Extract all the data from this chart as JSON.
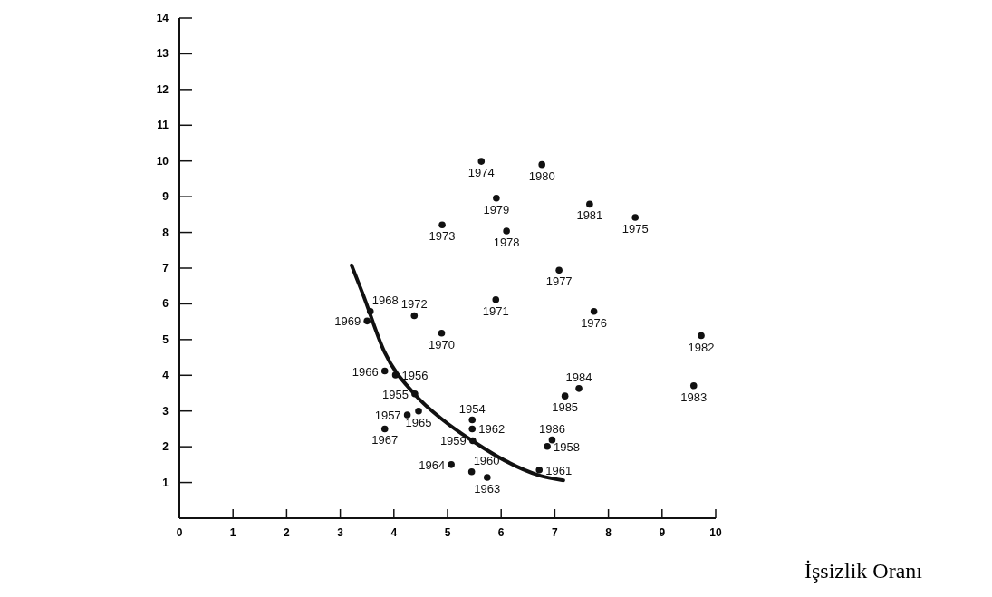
{
  "chart_data": {
    "type": "scatter",
    "xlabel": "İşsizlik Oranı",
    "xlim": [
      0,
      10
    ],
    "ylim": [
      0,
      14
    ],
    "xticks": [
      0,
      1,
      2,
      3,
      4,
      5,
      6,
      7,
      8,
      9,
      10
    ],
    "yticks": [
      1,
      2,
      3,
      4,
      5,
      6,
      7,
      8,
      9,
      10,
      11,
      12,
      13,
      14
    ],
    "grid": false,
    "marker": "circle",
    "series": [
      {
        "type": "scatter",
        "color": "#111111",
        "x": [
          5.63,
          6.76,
          5.91,
          4.9,
          6.1,
          7.65,
          8.5,
          7.08,
          5.9,
          7.73,
          9.73,
          9.59,
          7.45,
          7.19,
          6.95,
          6.86,
          6.71,
          3.56,
          3.5,
          4.38,
          4.89,
          3.83,
          4.03,
          4.39,
          4.25,
          4.46,
          3.83,
          5.46,
          5.46,
          5.47,
          5.07,
          5.45,
          5.74
        ],
        "values": [
          9.99,
          9.9,
          8.96,
          8.21,
          8.04,
          8.79,
          8.42,
          6.94,
          6.12,
          5.79,
          5.11,
          3.71,
          3.63,
          3.42,
          2.19,
          2.01,
          1.35,
          5.79,
          5.52,
          5.67,
          5.18,
          4.12,
          4.01,
          3.48,
          2.89,
          3.0,
          2.5,
          2.75,
          2.5,
          2.17,
          1.5,
          1.3,
          1.14
        ]
      },
      {
        "type": "line",
        "color": "#111111",
        "line_style": "solid",
        "marker": "none",
        "x": [
          3.21,
          3.42,
          3.82,
          4.38,
          4.94,
          5.5,
          6.06,
          6.73,
          7.16
        ],
        "values": [
          7.08,
          6.28,
          4.67,
          3.48,
          2.72,
          2.13,
          1.62,
          1.19,
          1.06
        ]
      }
    ],
    "annotations": [
      {
        "text": "1974",
        "x": 5.63,
        "y": 9.99
      },
      {
        "text": "1980",
        "x": 6.76,
        "y": 9.9
      },
      {
        "text": "1979",
        "x": 5.91,
        "y": 8.96
      },
      {
        "text": "1973",
        "x": 4.9,
        "y": 8.21
      },
      {
        "text": "1978",
        "x": 6.1,
        "y": 8.04
      },
      {
        "text": "1981",
        "x": 7.65,
        "y": 8.79
      },
      {
        "text": "1975",
        "x": 8.5,
        "y": 8.42
      },
      {
        "text": "1977",
        "x": 7.08,
        "y": 6.94
      },
      {
        "text": "1971",
        "x": 5.9,
        "y": 6.12
      },
      {
        "text": "1976",
        "x": 7.73,
        "y": 5.79
      },
      {
        "text": "1982",
        "x": 9.73,
        "y": 5.11
      },
      {
        "text": "1983",
        "x": 9.59,
        "y": 3.71
      },
      {
        "text": "1984",
        "x": 7.45,
        "y": 3.63
      },
      {
        "text": "1985",
        "x": 7.19,
        "y": 3.42
      },
      {
        "text": "1986",
        "x": 6.95,
        "y": 2.19
      },
      {
        "text": "1958",
        "x": 6.86,
        "y": 2.01
      },
      {
        "text": "1961",
        "x": 6.71,
        "y": 1.35
      },
      {
        "text": "1968",
        "x": 3.56,
        "y": 5.79
      },
      {
        "text": "1969",
        "x": 3.5,
        "y": 5.52
      },
      {
        "text": "1972",
        "x": 4.38,
        "y": 5.67
      },
      {
        "text": "1970",
        "x": 4.89,
        "y": 5.18
      },
      {
        "text": "1966",
        "x": 3.83,
        "y": 4.12
      },
      {
        "text": "1956",
        "x": 4.03,
        "y": 4.01
      },
      {
        "text": "1955",
        "x": 4.39,
        "y": 3.48
      },
      {
        "text": "1957",
        "x": 4.25,
        "y": 2.89
      },
      {
        "text": "1965",
        "x": 4.46,
        "y": 3.0
      },
      {
        "text": "1967",
        "x": 3.83,
        "y": 2.5
      },
      {
        "text": "1954",
        "x": 5.46,
        "y": 2.75
      },
      {
        "text": "1962",
        "x": 5.46,
        "y": 2.5
      },
      {
        "text": "1959",
        "x": 5.47,
        "y": 2.17
      },
      {
        "text": "1964",
        "x": 5.07,
        "y": 1.5
      },
      {
        "text": "1960",
        "x": 5.45,
        "y": 1.3
      },
      {
        "text": "1963",
        "x": 5.74,
        "y": 1.14
      }
    ]
  }
}
